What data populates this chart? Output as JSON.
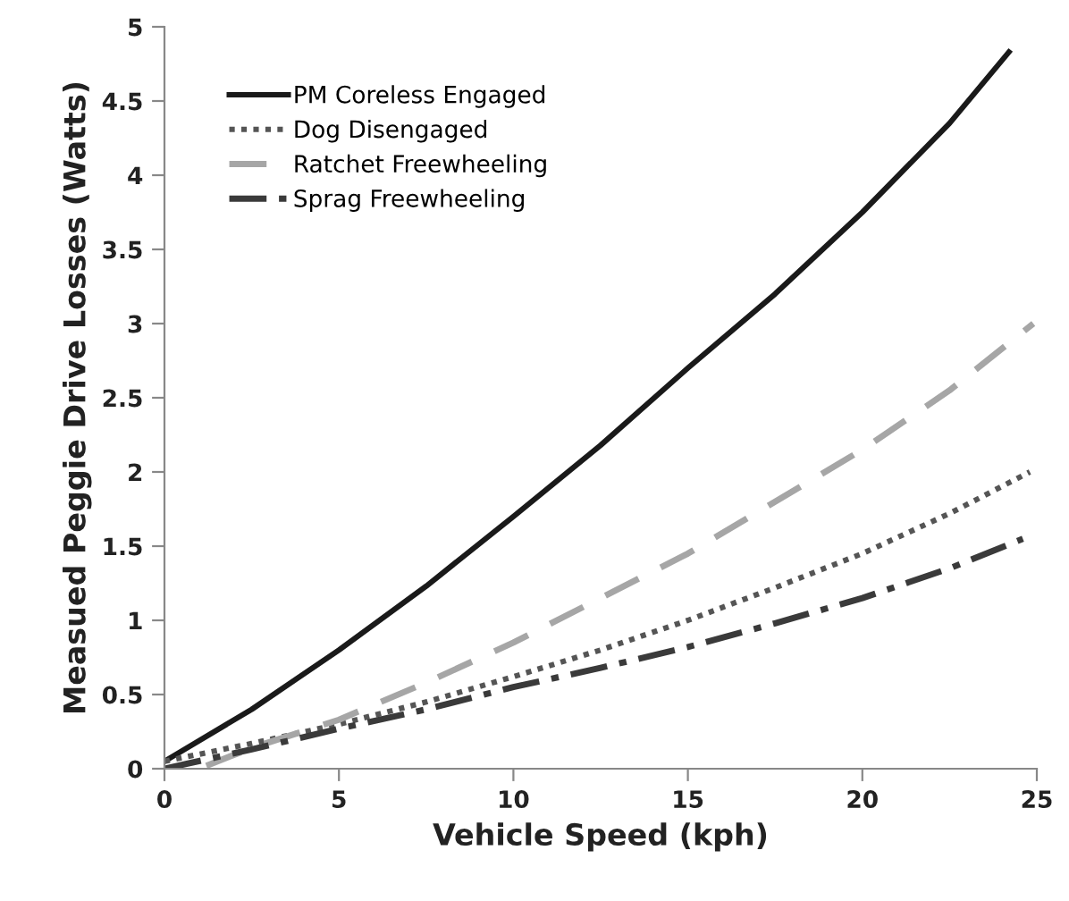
{
  "chart_data": {
    "type": "line",
    "xlabel": "Vehicle Speed (kph)",
    "ylabel": "Measued Peggie Drive Losses (Watts)",
    "xlim": [
      0,
      25
    ],
    "xticks": [
      0,
      5,
      10,
      15,
      20,
      25
    ],
    "ylim": [
      0,
      5
    ],
    "yticks": [
      0,
      0.5,
      1,
      1.5,
      2,
      2.5,
      3,
      3.5,
      4,
      4.5,
      5
    ],
    "grid": false,
    "legend": "top left",
    "marker": "none",
    "series": [
      {
        "name": "PM Coreless Engaged",
        "color": "#1a1a1a",
        "line_style": "solid",
        "x": [
          0,
          2.5,
          5,
          7.5,
          10,
          12.5,
          15,
          17.5,
          20,
          22.5,
          24.2
        ],
        "values": [
          0.05,
          0.4,
          0.8,
          1.23,
          1.7,
          2.18,
          2.7,
          3.2,
          3.75,
          4.35,
          4.83
        ]
      },
      {
        "name": "Dog Disengaged",
        "color": "#555555",
        "line_style": "dotted",
        "x": [
          0,
          2.5,
          5,
          7.5,
          10,
          12.5,
          15,
          17.5,
          20,
          22.5,
          24.8
        ],
        "values": [
          0.05,
          0.17,
          0.3,
          0.45,
          0.62,
          0.8,
          1.0,
          1.22,
          1.45,
          1.72,
          2.0
        ]
      },
      {
        "name": "Ratchet Freewheeling",
        "color": "#a6a6a6",
        "line_style": "dashed",
        "x": [
          1.2,
          2.5,
          5,
          7.5,
          10,
          12.5,
          15,
          17.5,
          20,
          22.5,
          24.9
        ],
        "values": [
          0.02,
          0.14,
          0.33,
          0.58,
          0.85,
          1.15,
          1.45,
          1.8,
          2.15,
          2.55,
          3.0
        ]
      },
      {
        "name": "Sprag Freewheeling",
        "color": "#3a3a3a",
        "line_style": "dashdot",
        "x": [
          0,
          2.5,
          5,
          7.5,
          10,
          12.5,
          15,
          17.5,
          20,
          22.5,
          24.6
        ],
        "values": [
          0,
          0.13,
          0.27,
          0.4,
          0.55,
          0.68,
          0.82,
          0.98,
          1.15,
          1.35,
          1.55
        ]
      }
    ]
  }
}
